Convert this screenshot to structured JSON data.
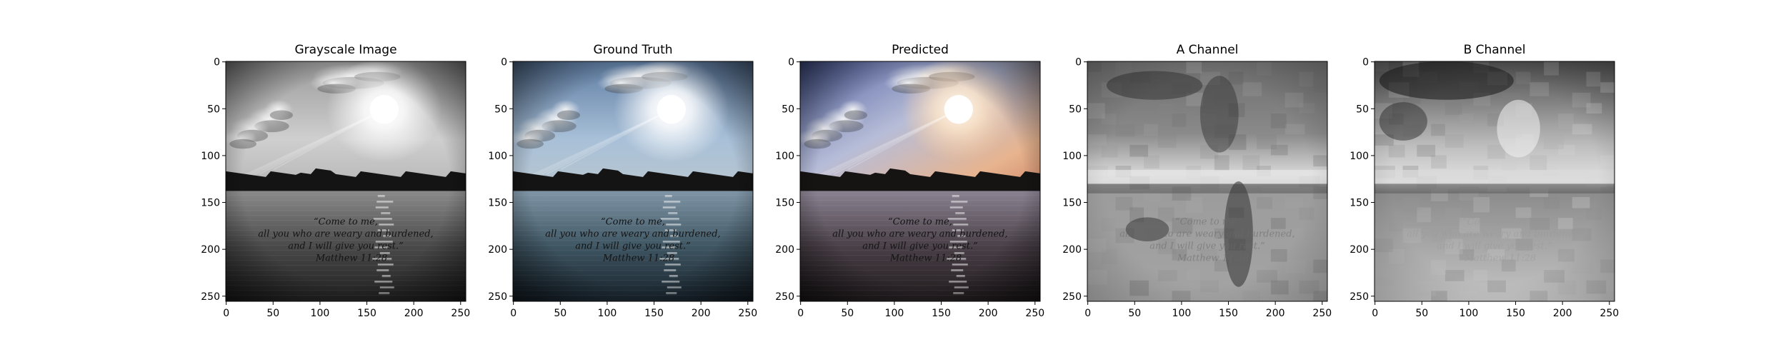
{
  "figure": {
    "panels": [
      {
        "title": "Grayscale Image",
        "mode": "gray"
      },
      {
        "title": "Ground Truth",
        "mode": "truth"
      },
      {
        "title": "Predicted",
        "mode": "pred"
      },
      {
        "title": "A Channel",
        "mode": "a"
      },
      {
        "title": "B Channel",
        "mode": "b"
      }
    ],
    "x_ticks": [
      0,
      50,
      100,
      150,
      200,
      250
    ],
    "y_ticks": [
      0,
      50,
      100,
      150,
      200,
      250
    ],
    "image_size": [
      256,
      256
    ],
    "quote_lines": [
      "“Come to me,",
      "all you who are weary and burdened,",
      "and I will give you rest.”",
      "Matthew 11:28"
    ]
  }
}
